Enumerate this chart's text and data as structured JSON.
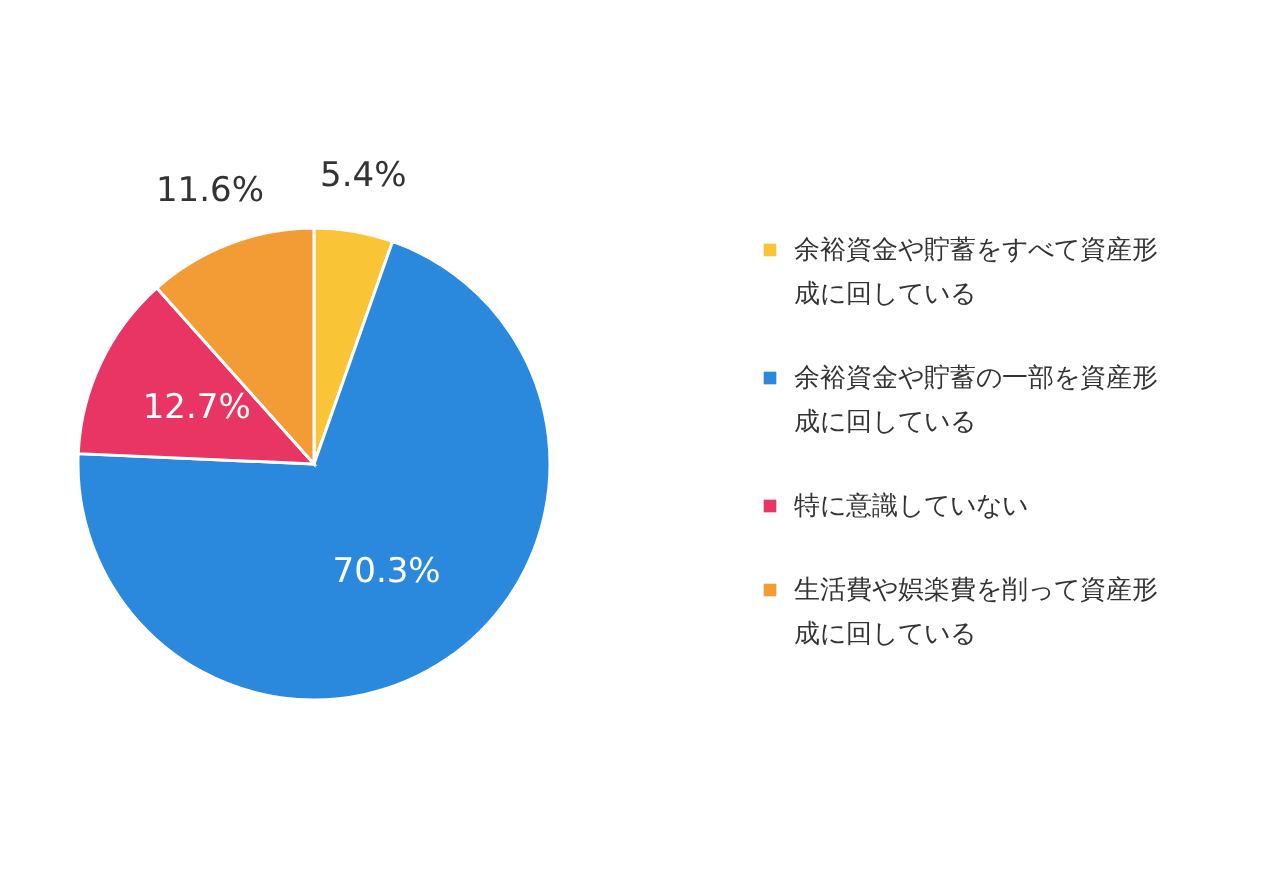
{
  "chart_data": {
    "type": "pie",
    "categories": [
      "余裕資金や貯蓄をすべて資産形成に回している",
      "余裕資金や貯蓄の一部を資産形成に回している",
      "特に意識していない",
      "生活費や娯楽費を削って資産形成に回している"
    ],
    "values": [
      5.4,
      70.3,
      12.7,
      11.6
    ],
    "colors": [
      "#f9c536",
      "#2a88dd",
      "#e83563",
      "#f39c35"
    ],
    "value_labels": [
      "5.4%",
      "70.3%",
      "12.7%",
      "11.6%"
    ],
    "legend": "right"
  }
}
